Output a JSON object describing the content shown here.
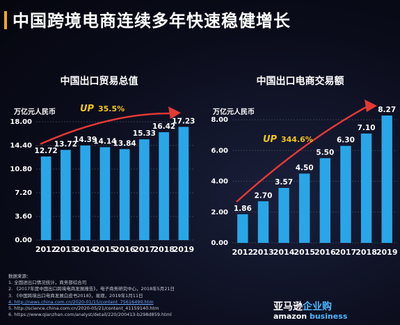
{
  "page": {
    "title": "中国跨境电商连续多年快速稳健增长"
  },
  "chart_data": [
    {
      "type": "bar",
      "title": "中国出口贸易总值",
      "unit_label": "万亿元人民币",
      "categories": [
        "2012",
        "2013",
        "2014",
        "2015",
        "2016",
        "2017",
        "2018",
        "2019"
      ],
      "values": [
        12.72,
        13.72,
        14.39,
        14.14,
        13.84,
        15.33,
        16.42,
        17.23
      ],
      "value_labels": [
        "12.72",
        "13.72",
        "14.39",
        "14.14",
        "13.84",
        "15.33",
        "16.42",
        "17.23"
      ],
      "yticks": [
        "0.00",
        "3.60",
        "7.20",
        "10.80",
        "14.40",
        "18.00"
      ],
      "ylim": [
        0,
        18
      ],
      "growth_badge": {
        "prefix": "UP",
        "text": "35.5%"
      },
      "bar_color": "#29a6e8",
      "arrow_color": "#e53935",
      "grid": true
    },
    {
      "type": "bar",
      "title": "中国出口电商交易额",
      "unit_label": "万亿元人民币",
      "categories": [
        "2012",
        "2013",
        "2014",
        "2015",
        "2016",
        "2017",
        "2018",
        "2019"
      ],
      "values": [
        1.86,
        2.7,
        3.57,
        4.5,
        5.5,
        6.3,
        7.1,
        8.27
      ],
      "value_labels": [
        "1.86",
        "2.70",
        "3.57",
        "4.50",
        "5.50",
        "6.30",
        "7.10",
        "8.27"
      ],
      "yticks": [
        "0.00",
        "2.00",
        "4.00",
        "6.00",
        "8.00"
      ],
      "ylim": [
        0,
        8
      ],
      "growth_badge": {
        "prefix": "UP",
        "text": "344.6%"
      },
      "bar_color": "#29a6e8",
      "arrow_color": "#e53935",
      "grid": true
    }
  ],
  "sources": {
    "heading": "数据来源：",
    "items": [
      "1.  全国进出口情况统计，商务部综合司",
      "2.  《2017年度中国出口跨境电商发展报告》，电子商务研究中心，2018年5月21日",
      "3.  《中国跨境出口电商发展白皮书2018》，易观，2019年1月11日",
      "4.  http://news.china.com.cn/2020-01/15/content_75616490.htm",
      "5.  http://science.china.com.cn/2020-05/21/content_41159140.htm",
      "6.  https://www.qianzhan.com/analyst/detail/220/200413-b298d859.html"
    ]
  },
  "logo": {
    "cn_a": "亚马逊",
    "cn_b": "企业购",
    "en_a": "amazon",
    "en_b": "business"
  }
}
